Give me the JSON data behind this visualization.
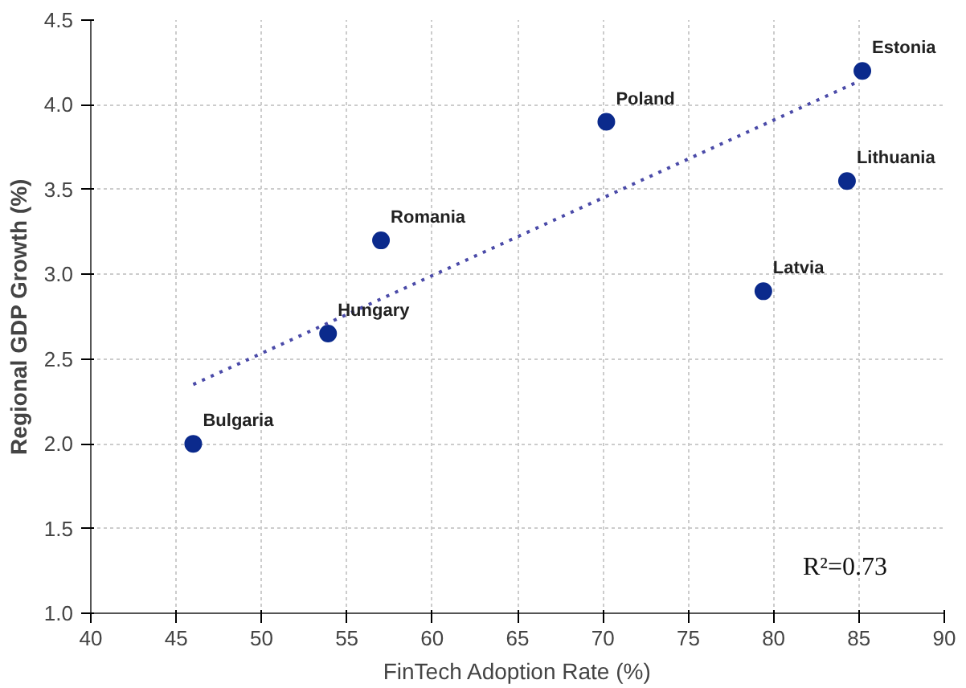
{
  "chart_data": {
    "type": "scatter",
    "xlabel": "FinTech Adoption Rate (%)",
    "ylabel": "Regional GDP Growth (%)",
    "xlim": [
      40,
      90
    ],
    "xticks": [
      40,
      45,
      50,
      55,
      60,
      65,
      70,
      75,
      80,
      85,
      90
    ],
    "ylim": [
      1.0,
      4.5
    ],
    "yticks": [
      {
        "value": 1.0,
        "label": "1.0"
      },
      1.5,
      {
        "value": 2.0,
        "label": "2.0"
      },
      2.5,
      {
        "value": 3.0,
        "label": "3.0"
      },
      3.5,
      {
        "value": 4.0,
        "label": "4.0"
      },
      4.5
    ],
    "grid": true,
    "series": [
      {
        "marker": "circle",
        "color": "#0b2a8c",
        "x": [
          46,
          53.9,
          57,
          70.2,
          85.2,
          84.3,
          79.4
        ],
        "values": [
          2.0,
          2.65,
          3.2,
          3.9,
          4.2,
          3.55,
          2.9
        ]
      },
      {
        "type": "line",
        "color": "#4a4aa8",
        "line_style": "dotted",
        "x": [
          46,
          84.8
        ],
        "values": [
          2.35,
          4.13
        ]
      }
    ],
    "annotations": [
      {
        "text": "Bulgaria",
        "x": 46,
        "y": 2.0
      },
      {
        "text": "Hungary",
        "x": 53.9,
        "y": 2.65
      },
      {
        "text": "Romania",
        "x": 57,
        "y": 3.2
      },
      {
        "text": "Poland",
        "x": 70.2,
        "y": 3.9
      },
      {
        "text": "Estonia",
        "x": 85.2,
        "y": 4.2
      },
      {
        "text": "Lithuania",
        "x": 84.3,
        "y": 3.55
      },
      {
        "text": "Latvia",
        "x": 79.4,
        "y": 2.9
      },
      "R²=0.73"
    ]
  }
}
